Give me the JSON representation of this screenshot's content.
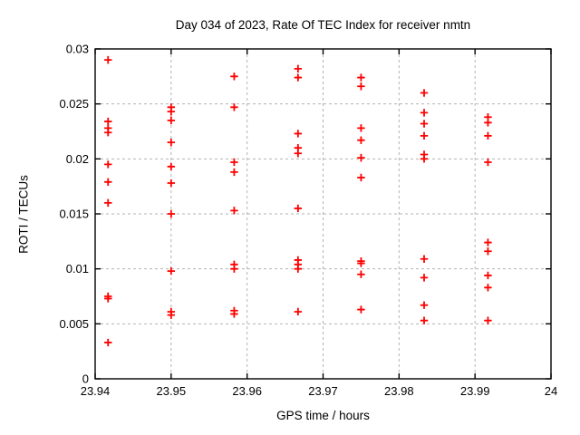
{
  "page": {
    "background": "#ffffff"
  },
  "colors": {
    "marker": "#ff0000",
    "grid": "#b3b3b3",
    "axis": "#000000",
    "text": "#000000",
    "background": "#ffffff"
  },
  "chart_data": {
    "type": "scatter",
    "title": "Day 034 of 2023, Rate Of TEC Index for receiver nmtn",
    "xlabel": "GPS time / hours",
    "ylabel": "ROTI / TECUs",
    "xlim": [
      23.94,
      24
    ],
    "ylim": [
      0,
      0.03
    ],
    "xticks": [
      23.94,
      23.95,
      23.96,
      23.97,
      23.98,
      23.99,
      24
    ],
    "xtick_labels": [
      "23.94",
      "23.95",
      "23.96",
      "23.97",
      "23.98",
      "23.99",
      "24"
    ],
    "yticks": [
      0,
      0.005,
      0.01,
      0.015,
      0.02,
      0.025,
      0.03
    ],
    "ytick_labels": [
      "0",
      "0.005",
      "0.01",
      "0.015",
      "0.02",
      "0.025",
      "0.03"
    ],
    "grid": true,
    "legend": "none",
    "marker_style": "plus",
    "series": [
      {
        "name": "ROTI",
        "points": [
          [
            23.9417,
            0.029
          ],
          [
            23.9417,
            0.0234
          ],
          [
            23.9417,
            0.0228
          ],
          [
            23.9417,
            0.0224
          ],
          [
            23.9417,
            0.0195
          ],
          [
            23.9417,
            0.0179
          ],
          [
            23.9417,
            0.016
          ],
          [
            23.9417,
            0.0075
          ],
          [
            23.9417,
            0.0073
          ],
          [
            23.9417,
            0.0033
          ],
          [
            23.95,
            0.0247
          ],
          [
            23.95,
            0.0243
          ],
          [
            23.95,
            0.0235
          ],
          [
            23.95,
            0.0215
          ],
          [
            23.95,
            0.0193
          ],
          [
            23.95,
            0.0178
          ],
          [
            23.95,
            0.015
          ],
          [
            23.95,
            0.0098
          ],
          [
            23.95,
            0.0061
          ],
          [
            23.95,
            0.0058
          ],
          [
            23.9583,
            0.0275
          ],
          [
            23.9583,
            0.0247
          ],
          [
            23.9583,
            0.0197
          ],
          [
            23.9583,
            0.0188
          ],
          [
            23.9583,
            0.0153
          ],
          [
            23.9583,
            0.0104
          ],
          [
            23.9583,
            0.01
          ],
          [
            23.9583,
            0.0062
          ],
          [
            23.9583,
            0.0059
          ],
          [
            23.9667,
            0.0282
          ],
          [
            23.9667,
            0.0274
          ],
          [
            23.9667,
            0.0223
          ],
          [
            23.9667,
            0.021
          ],
          [
            23.9667,
            0.0205
          ],
          [
            23.9667,
            0.0155
          ],
          [
            23.9667,
            0.0108
          ],
          [
            23.9667,
            0.0104
          ],
          [
            23.9667,
            0.01
          ],
          [
            23.9667,
            0.0061
          ],
          [
            23.975,
            0.0274
          ],
          [
            23.975,
            0.0266
          ],
          [
            23.975,
            0.0228
          ],
          [
            23.975,
            0.0217
          ],
          [
            23.975,
            0.0201
          ],
          [
            23.975,
            0.0183
          ],
          [
            23.975,
            0.0107
          ],
          [
            23.975,
            0.0105
          ],
          [
            23.975,
            0.0095
          ],
          [
            23.975,
            0.0063
          ],
          [
            23.9833,
            0.026
          ],
          [
            23.9833,
            0.0242
          ],
          [
            23.9833,
            0.0232
          ],
          [
            23.9833,
            0.0221
          ],
          [
            23.9833,
            0.0204
          ],
          [
            23.9833,
            0.02
          ],
          [
            23.9833,
            0.0109
          ],
          [
            23.9833,
            0.0092
          ],
          [
            23.9833,
            0.0067
          ],
          [
            23.9833,
            0.0053
          ],
          [
            23.9917,
            0.0238
          ],
          [
            23.9917,
            0.0233
          ],
          [
            23.9917,
            0.0221
          ],
          [
            23.9917,
            0.0197
          ],
          [
            23.9917,
            0.0124
          ],
          [
            23.9917,
            0.0116
          ],
          [
            23.9917,
            0.0094
          ],
          [
            23.9917,
            0.0083
          ],
          [
            23.9917,
            0.0053
          ]
        ]
      }
    ]
  }
}
